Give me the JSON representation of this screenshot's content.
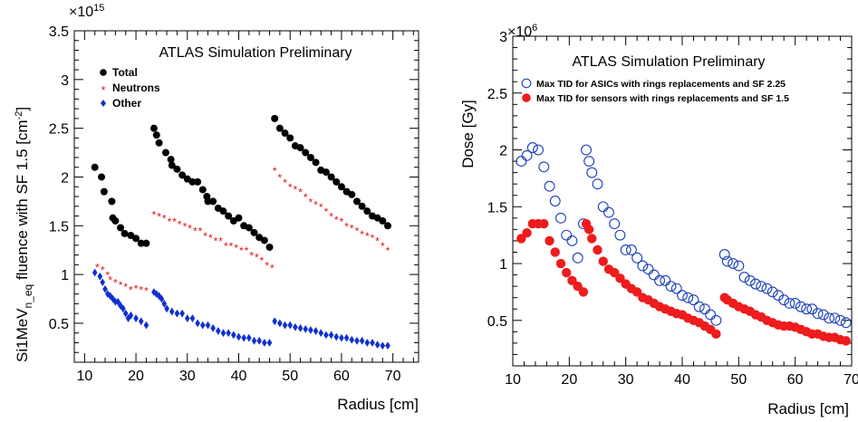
{
  "chart_data": [
    {
      "type": "scatter",
      "title": "ATLAS Simulation Preliminary",
      "xlabel": "Radius [cm]",
      "ylabel_main": "Si1MeV",
      "ylabel_sub": "n_eq",
      "ylabel_rest": " fluence with SF 1.5 [cm",
      "ylabel_sup": "-2",
      "ylabel_end": "]",
      "y_multiplier_base": "×10",
      "y_multiplier_exp": "15",
      "xlim": [
        8,
        75
      ],
      "ylim": [
        0.1,
        3.5
      ],
      "xticks": [
        "10",
        "20",
        "30",
        "40",
        "50",
        "60",
        "70"
      ],
      "yticks": [
        "0.5",
        "1",
        "1.5",
        "2",
        "2.5",
        "3",
        "3.5"
      ],
      "legend_position": "top-left",
      "series": [
        {
          "name": "Total",
          "color": "#000000",
          "marker": "circle",
          "x": [
            12.0,
            13.3,
            13.8,
            15.3,
            15.5,
            16.0,
            17.0,
            17.8,
            19.0,
            20.0,
            21.0,
            22.0,
            23.5,
            24.0,
            24.5,
            25.8,
            26.8,
            27.0,
            28.0,
            29.0,
            30.0,
            31.0,
            32.0,
            33.0,
            33.8,
            34.0,
            35.0,
            36.0,
            37.0,
            38.0,
            39.0,
            40.0,
            41.0,
            42.0,
            43.0,
            44.0,
            45.0,
            46.0,
            47.0,
            48.0,
            49.0,
            50.0,
            51.0,
            52.0,
            53.0,
            54.0,
            55.0,
            56.0,
            57.0,
            58.0,
            59.0,
            60.0,
            61.0,
            62.0,
            63.0,
            64.0,
            65.0,
            66.0,
            67.0,
            68.0,
            69.0
          ],
          "y": [
            2.1,
            2.0,
            1.85,
            1.75,
            1.58,
            1.55,
            1.48,
            1.42,
            1.4,
            1.37,
            1.32,
            1.32,
            2.5,
            2.43,
            2.35,
            2.25,
            2.18,
            2.12,
            2.08,
            2.02,
            1.98,
            1.95,
            1.95,
            1.87,
            1.8,
            1.75,
            1.75,
            1.68,
            1.65,
            1.6,
            1.55,
            1.58,
            1.5,
            1.48,
            1.43,
            1.38,
            1.35,
            1.28,
            2.6,
            2.5,
            2.45,
            2.4,
            2.32,
            2.3,
            2.25,
            2.2,
            2.15,
            2.07,
            2.05,
            2.0,
            1.95,
            1.9,
            1.85,
            1.82,
            1.75,
            1.7,
            1.65,
            1.6,
            1.58,
            1.55,
            1.5
          ]
        },
        {
          "name": "Neutrons",
          "color": "#e01010",
          "marker": "star",
          "x": [
            12.5,
            13.5,
            14.5,
            15.0,
            16.0,
            17.0,
            18.0,
            19.0,
            20.0,
            21.0,
            22.0,
            23.5,
            24.5,
            25.5,
            26.5,
            27.5,
            28.5,
            29.5,
            30.5,
            31.5,
            32.5,
            33.5,
            34.5,
            35.5,
            36.5,
            37.5,
            38.5,
            39.5,
            40.5,
            41.5,
            42.5,
            43.5,
            44.5,
            45.5,
            46.5,
            47.0,
            48.0,
            49.0,
            50.0,
            51.0,
            52.0,
            53.0,
            54.0,
            55.0,
            56.0,
            57.0,
            58.0,
            59.0,
            60.0,
            61.0,
            62.0,
            63.0,
            64.0,
            65.0,
            66.0,
            67.0,
            68.0,
            69.0
          ],
          "y": [
            1.08,
            1.05,
            1.0,
            0.95,
            0.92,
            0.9,
            0.88,
            0.85,
            0.86,
            0.85,
            0.84,
            1.62,
            1.6,
            1.58,
            1.55,
            1.55,
            1.52,
            1.5,
            1.48,
            1.45,
            1.45,
            1.4,
            1.38,
            1.35,
            1.35,
            1.3,
            1.3,
            1.28,
            1.25,
            1.25,
            1.2,
            1.18,
            1.15,
            1.1,
            1.07,
            2.07,
            2.0,
            1.95,
            1.9,
            1.88,
            1.85,
            1.8,
            1.75,
            1.72,
            1.7,
            1.65,
            1.6,
            1.57,
            1.55,
            1.5,
            1.48,
            1.45,
            1.42,
            1.4,
            1.38,
            1.35,
            1.3,
            1.25
          ]
        },
        {
          "name": "Other",
          "color": "#1030d0",
          "marker": "diamond",
          "x": [
            12.0,
            13.0,
            13.5,
            14.0,
            14.5,
            15.0,
            15.5,
            16.0,
            16.5,
            17.0,
            17.5,
            18.0,
            18.5,
            19.0,
            20.0,
            21.0,
            22.0,
            23.5,
            24.0,
            24.5,
            25.0,
            25.5,
            26.0,
            27.0,
            28.0,
            29.0,
            30.0,
            31.0,
            32.0,
            33.0,
            34.0,
            35.0,
            36.0,
            37.0,
            38.0,
            39.0,
            40.0,
            41.0,
            42.0,
            43.0,
            44.0,
            45.0,
            46.0,
            47.0,
            48.0,
            49.0,
            50.0,
            51.0,
            52.0,
            53.0,
            54.0,
            55.0,
            56.0,
            57.0,
            58.0,
            59.0,
            60.0,
            61.0,
            62.0,
            63.0,
            64.0,
            65.0,
            66.0,
            67.0,
            68.0,
            69.0
          ],
          "y": [
            1.02,
            0.98,
            0.92,
            0.85,
            0.8,
            0.78,
            0.75,
            0.72,
            0.72,
            0.68,
            0.65,
            0.6,
            0.55,
            0.58,
            0.55,
            0.52,
            0.48,
            0.82,
            0.8,
            0.78,
            0.75,
            0.7,
            0.65,
            0.62,
            0.6,
            0.6,
            0.55,
            0.55,
            0.5,
            0.48,
            0.48,
            0.45,
            0.42,
            0.4,
            0.4,
            0.38,
            0.36,
            0.35,
            0.35,
            0.32,
            0.32,
            0.3,
            0.3,
            0.52,
            0.5,
            0.48,
            0.48,
            0.46,
            0.45,
            0.44,
            0.43,
            0.42,
            0.4,
            0.38,
            0.38,
            0.36,
            0.35,
            0.35,
            0.33,
            0.32,
            0.32,
            0.3,
            0.3,
            0.28,
            0.27,
            0.27
          ]
        }
      ]
    },
    {
      "type": "scatter",
      "title": "ATLAS Simulation Preliminary",
      "xlabel": "Radius [cm]",
      "ylabel": "Dose [Gy]",
      "y_multiplier_base": "×10",
      "y_multiplier_exp": "6",
      "xlim": [
        10,
        70
      ],
      "ylim": [
        0.1,
        3.0
      ],
      "xticks": [
        "10",
        "20",
        "30",
        "40",
        "50",
        "60",
        "70"
      ],
      "yticks": [
        "0.5",
        "1",
        "1.5",
        "2",
        "2.5",
        "3"
      ],
      "legend_position": "top-left",
      "series": [
        {
          "name": "Max TID for ASICs with rings replacements and SF 2.25",
          "color": "#1a3fb8",
          "marker": "open-circle",
          "x": [
            11.5,
            12.5,
            13.5,
            14.5,
            15.5,
            16.5,
            17.5,
            18.5,
            19.5,
            20.5,
            21.5,
            22.5,
            23.0,
            23.5,
            24.0,
            25.0,
            26.0,
            27.0,
            28.0,
            29.0,
            30.0,
            31.0,
            32.0,
            33.0,
            34.0,
            35.0,
            36.0,
            37.0,
            38.0,
            39.0,
            40.0,
            41.0,
            42.0,
            43.0,
            44.0,
            45.0,
            46.0,
            47.5,
            48.0,
            49.0,
            50.0,
            51.0,
            52.0,
            53.0,
            54.0,
            55.0,
            56.0,
            57.0,
            58.0,
            59.0,
            60.0,
            61.0,
            62.0,
            63.0,
            64.0,
            65.0,
            66.0,
            67.0,
            68.0,
            69.0
          ],
          "y": [
            1.9,
            1.95,
            2.02,
            2.0,
            1.85,
            1.68,
            1.55,
            1.4,
            1.25,
            1.2,
            1.05,
            1.35,
            2.0,
            1.9,
            1.8,
            1.7,
            1.5,
            1.45,
            1.35,
            1.25,
            1.12,
            1.12,
            1.05,
            0.98,
            0.95,
            0.9,
            0.85,
            0.85,
            0.8,
            0.78,
            0.72,
            0.7,
            0.68,
            0.62,
            0.6,
            0.55,
            0.5,
            1.08,
            1.02,
            1.0,
            0.98,
            0.88,
            0.85,
            0.82,
            0.8,
            0.78,
            0.75,
            0.72,
            0.68,
            0.65,
            0.65,
            0.62,
            0.6,
            0.6,
            0.56,
            0.55,
            0.52,
            0.52,
            0.5,
            0.48
          ]
        },
        {
          "name": "Max TID for sensors with rings replacements and SF 1.5",
          "color": "#ee1c1c",
          "marker": "filled-circle",
          "x": [
            11.5,
            12.5,
            13.5,
            14.5,
            15.5,
            16.5,
            17.5,
            18.5,
            19.5,
            20.5,
            21.5,
            22.5,
            23.0,
            23.5,
            24.0,
            25.0,
            26.0,
            27.0,
            28.0,
            29.0,
            30.0,
            31.0,
            32.0,
            33.0,
            34.0,
            35.0,
            36.0,
            37.0,
            38.0,
            39.0,
            40.0,
            41.0,
            42.0,
            43.0,
            44.0,
            45.0,
            46.0,
            47.5,
            48.0,
            49.0,
            50.0,
            51.0,
            52.0,
            53.0,
            54.0,
            55.0,
            56.0,
            57.0,
            58.0,
            59.0,
            60.0,
            61.0,
            62.0,
            63.0,
            64.0,
            65.0,
            66.0,
            67.0,
            68.0,
            69.0
          ],
          "y": [
            1.22,
            1.27,
            1.35,
            1.35,
            1.35,
            1.2,
            1.1,
            1.0,
            0.92,
            0.85,
            0.8,
            0.75,
            1.35,
            1.3,
            1.22,
            1.12,
            1.02,
            0.95,
            0.92,
            0.87,
            0.82,
            0.78,
            0.75,
            0.7,
            0.68,
            0.65,
            0.62,
            0.6,
            0.58,
            0.56,
            0.55,
            0.52,
            0.5,
            0.48,
            0.45,
            0.42,
            0.38,
            0.7,
            0.68,
            0.65,
            0.62,
            0.6,
            0.58,
            0.55,
            0.53,
            0.5,
            0.48,
            0.46,
            0.45,
            0.45,
            0.44,
            0.42,
            0.4,
            0.38,
            0.38,
            0.36,
            0.35,
            0.35,
            0.33,
            0.32
          ]
        }
      ]
    }
  ]
}
